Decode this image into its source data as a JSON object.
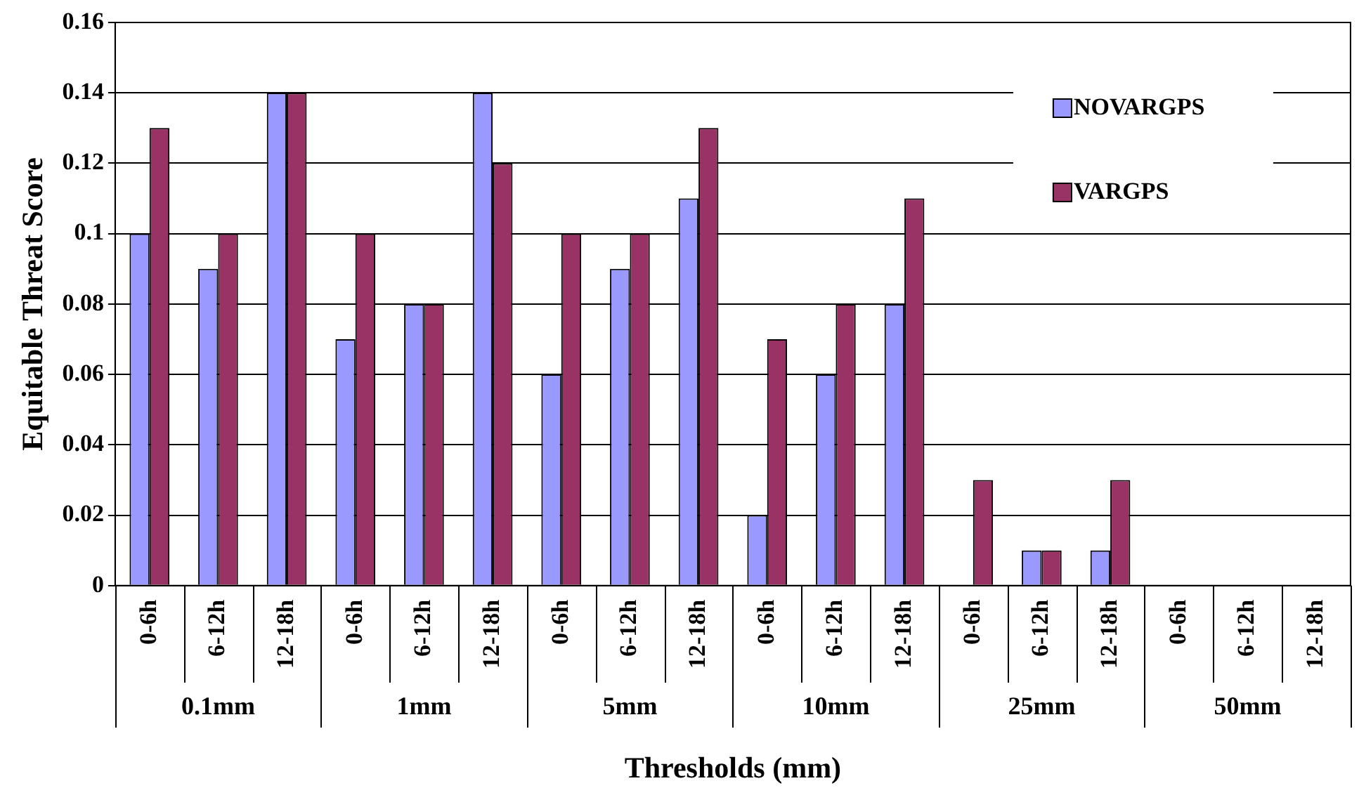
{
  "chart_data": {
    "type": "bar",
    "xlabel": "Thresholds (mm)",
    "ylabel": "Equitable Threat Score",
    "categories": [
      "0-6h",
      "6-12h",
      "12-18h",
      "0-6h",
      "6-12h",
      "12-18h",
      "0-6h",
      "6-12h",
      "12-18h",
      "0-6h",
      "6-12h",
      "12-18h",
      "0-6h",
      "6-12h",
      "12-18h",
      "0-6h",
      "6-12h",
      "12-18h"
    ],
    "annotations": [
      "0.1mm",
      "1mm",
      "5mm",
      "10mm",
      "25mm",
      "50mm"
    ],
    "series": [
      {
        "name": "NOVARGPS",
        "color": "#9999ff",
        "values": [
          0.1,
          0.09,
          0.14,
          0.07,
          0.08,
          0.14,
          0.06,
          0.09,
          0.11,
          0.02,
          0.06,
          0.08,
          0,
          0.01,
          0.01,
          0,
          0,
          0
        ]
      },
      {
        "name": "VARGPS",
        "color": "#993366",
        "values": [
          0.13,
          0.1,
          0.14,
          0.1,
          0.08,
          0.12,
          0.1,
          0.1,
          0.13,
          0.07,
          0.08,
          0.11,
          0.03,
          0.01,
          0.03,
          0,
          0,
          0
        ]
      }
    ],
    "ylim": [
      0,
      0.16
    ],
    "yticks": [
      0,
      0.02,
      0.04,
      0.06,
      0.08,
      0.1,
      0.12,
      0.14,
      0.16
    ],
    "grid": "y",
    "legend": "top right"
  }
}
